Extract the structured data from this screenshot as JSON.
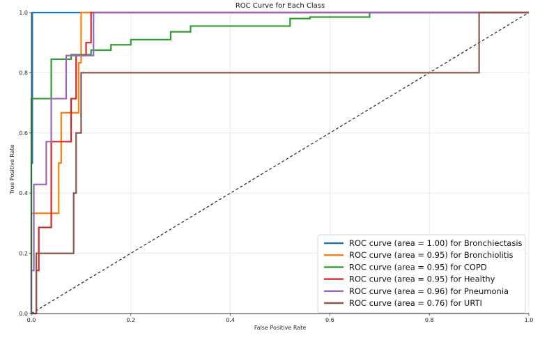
{
  "chart_data": {
    "type": "line",
    "title": "ROC Curve for Each Class",
    "xlabel": "False Positive Rate",
    "ylabel": "True Positive Rate",
    "xlim": [
      0.0,
      1.0
    ],
    "ylim": [
      0.0,
      1.0
    ],
    "xticks": [
      "0.0",
      "0.2",
      "0.4",
      "0.6",
      "0.8",
      "1.0"
    ],
    "yticks": [
      "0.0",
      "0.2",
      "0.4",
      "0.6",
      "0.8",
      "1.0"
    ],
    "grid": true,
    "legend_position": "bottom-right",
    "series": [
      {
        "name": "ROC curve (area = 1.00) for Bronchiectasis",
        "color": "#1f77b4",
        "x": [
          0,
          0,
          0.002,
          0.002,
          0.1,
          1.0
        ],
        "y": [
          0,
          0.5,
          0.5,
          1.0,
          1.0,
          1.0
        ]
      },
      {
        "name": "ROC curve (area = 0.95) for Bronchiolitis",
        "color": "#ff7f0e",
        "x": [
          0,
          0,
          0.055,
          0.055,
          0.06,
          0.06,
          0.095,
          0.095,
          0.1,
          0.1,
          1.0
        ],
        "y": [
          0,
          0.333,
          0.333,
          0.5,
          0.5,
          0.667,
          0.667,
          0.833,
          0.833,
          1.0,
          1.0
        ]
      },
      {
        "name": "ROC curve (area = 0.95) for COPD",
        "color": "#2ca02c",
        "x": [
          0,
          0,
          0.04,
          0.04,
          0.08,
          0.08,
          0.12,
          0.12,
          0.16,
          0.16,
          0.2,
          0.2,
          0.28,
          0.28,
          0.32,
          0.32,
          0.52,
          0.52,
          0.56,
          0.56,
          0.68,
          0.68,
          1.0
        ],
        "y": [
          0,
          0.714,
          0.714,
          0.845,
          0.845,
          0.86,
          0.86,
          0.875,
          0.875,
          0.893,
          0.893,
          0.91,
          0.91,
          0.936,
          0.936,
          0.955,
          0.955,
          0.98,
          0.98,
          0.985,
          0.985,
          1.0,
          1.0
        ]
      },
      {
        "name": "ROC curve (area = 0.95) for Healthy",
        "color": "#d62728",
        "x": [
          0,
          0.01,
          0.01,
          0.015,
          0.015,
          0.04,
          0.04,
          0.08,
          0.08,
          0.09,
          0.09,
          0.11,
          0.11,
          0.12,
          0.12,
          1.0
        ],
        "y": [
          0,
          0,
          0.143,
          0.143,
          0.286,
          0.286,
          0.571,
          0.571,
          0.714,
          0.714,
          0.857,
          0.857,
          0.9,
          0.9,
          1.0,
          1.0
        ]
      },
      {
        "name": "ROC curve (area = 0.96) for Pneumonia",
        "color": "#9467bd",
        "x": [
          0,
          0,
          0.005,
          0.005,
          0.03,
          0.03,
          0.04,
          0.04,
          0.07,
          0.07,
          0.125,
          0.125,
          1.0
        ],
        "y": [
          0,
          0.143,
          0.143,
          0.429,
          0.429,
          0.571,
          0.571,
          0.714,
          0.714,
          0.857,
          0.857,
          1.0,
          1.0
        ]
      },
      {
        "name": "ROC curve (area = 0.76) for URTI",
        "color": "#8c564b",
        "x": [
          0,
          0.01,
          0.01,
          0.085,
          0.085,
          0.09,
          0.09,
          0.1,
          0.1,
          0.11,
          0.11,
          0.9,
          0.9,
          1.0
        ],
        "y": [
          0,
          0,
          0.2,
          0.2,
          0.4,
          0.4,
          0.6,
          0.6,
          0.8,
          0.8,
          0.8,
          0.8,
          1.0,
          1.0
        ]
      }
    ],
    "reference_line": {
      "style": "dashed",
      "color": "#222222",
      "x": [
        0,
        1
      ],
      "y": [
        0,
        1
      ]
    }
  }
}
